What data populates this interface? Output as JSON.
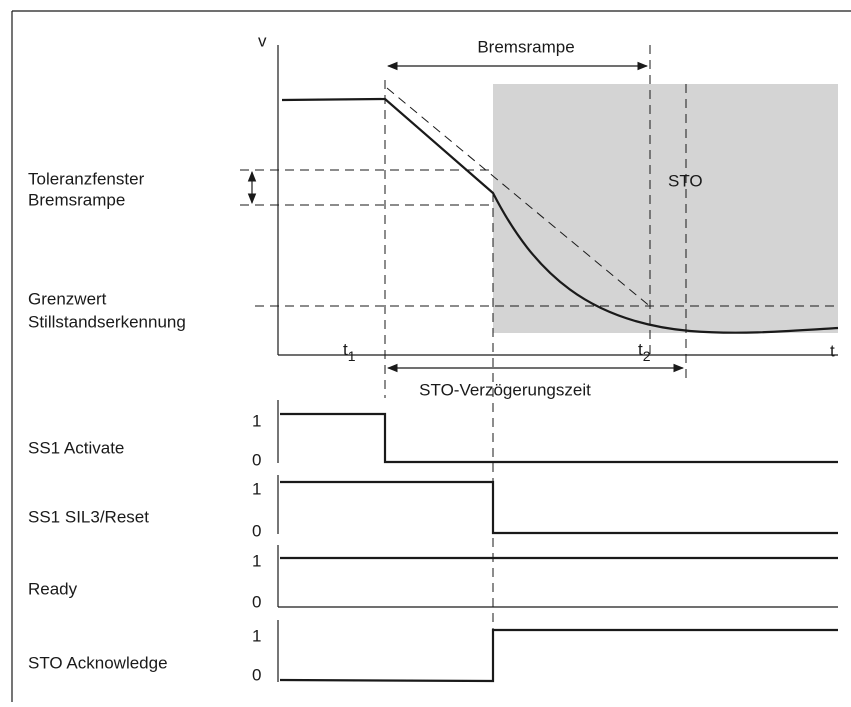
{
  "chart": {
    "v_label": "v",
    "t_label": "t",
    "t1": {
      "main": "t",
      "sub": "1"
    },
    "t2": {
      "main": "t",
      "sub": "2"
    },
    "brake_ramp": "Bremsrampe",
    "sto_zone": "STO",
    "tolerance": [
      "Toleranzfenster",
      "Bremsrampe"
    ],
    "standstill": [
      "Grenzwert",
      "Stillstandserkennung"
    ],
    "sto_delay": "STO-Verzögerungszeit"
  },
  "signals": [
    {
      "name": "SS1 Activate",
      "high": "1",
      "low": "0"
    },
    {
      "name": "SS1 SIL3/Reset",
      "high": "1",
      "low": "0"
    },
    {
      "name": "Ready",
      "high": "1",
      "low": "0"
    },
    {
      "name": "STO Acknowledge",
      "high": "1",
      "low": "0"
    }
  ]
}
